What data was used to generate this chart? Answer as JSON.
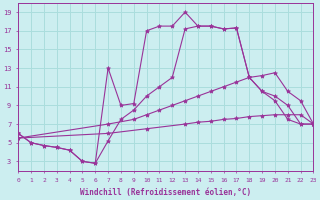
{
  "background_color": "#cceef0",
  "grid_color": "#aadddd",
  "line_color": "#993399",
  "marker": "*",
  "marker_size": 3,
  "xlim": [
    0,
    23
  ],
  "ylim": [
    2,
    20
  ],
  "xticks": [
    0,
    1,
    2,
    3,
    4,
    5,
    6,
    7,
    8,
    9,
    10,
    11,
    12,
    13,
    14,
    15,
    16,
    17,
    18,
    19,
    20,
    21,
    22,
    23
  ],
  "yticks": [
    3,
    5,
    7,
    9,
    11,
    13,
    15,
    17,
    19
  ],
  "xlabel": "Windchill (Refroidissement éolien,°C)",
  "line1_x": [
    0,
    1,
    2,
    3,
    4,
    5,
    6,
    7,
    8,
    9,
    10,
    11,
    12,
    13,
    14,
    15,
    16,
    17,
    18,
    19,
    20,
    21,
    22,
    23
  ],
  "line1_y": [
    6.0,
    5.0,
    4.7,
    4.5,
    4.2,
    3.0,
    2.8,
    13.0,
    9.0,
    9.2,
    17.0,
    17.5,
    17.5,
    19.0,
    17.5,
    17.5,
    17.2,
    17.3,
    12.0,
    10.5,
    9.5,
    7.5,
    7.0,
    7.0
  ],
  "line2_x": [
    0,
    1,
    2,
    3,
    4,
    5,
    6,
    7,
    8,
    9,
    10,
    11,
    12,
    13,
    14,
    15,
    16,
    17,
    18,
    19,
    20,
    21,
    22,
    23
  ],
  "line2_y": [
    6.0,
    5.0,
    4.7,
    4.5,
    4.2,
    3.0,
    2.8,
    5.2,
    7.5,
    8.5,
    10.0,
    11.0,
    12.0,
    17.2,
    17.5,
    17.5,
    17.2,
    17.3,
    12.0,
    10.5,
    10.0,
    9.0,
    7.0,
    7.0
  ],
  "line3_x": [
    0,
    7,
    9,
    10,
    11,
    12,
    13,
    14,
    15,
    16,
    17,
    18,
    19,
    20,
    21,
    22,
    23
  ],
  "line3_y": [
    5.5,
    7.0,
    7.5,
    8.0,
    8.5,
    9.0,
    9.5,
    10.0,
    10.5,
    11.0,
    11.5,
    12.0,
    12.2,
    12.5,
    10.5,
    9.5,
    7.0
  ],
  "line4_x": [
    0,
    7,
    10,
    13,
    14,
    15,
    16,
    17,
    18,
    19,
    20,
    21,
    22,
    23
  ],
  "line4_y": [
    5.5,
    6.0,
    6.5,
    7.0,
    7.2,
    7.3,
    7.5,
    7.6,
    7.8,
    7.9,
    8.0,
    8.0,
    8.0,
    7.0
  ]
}
